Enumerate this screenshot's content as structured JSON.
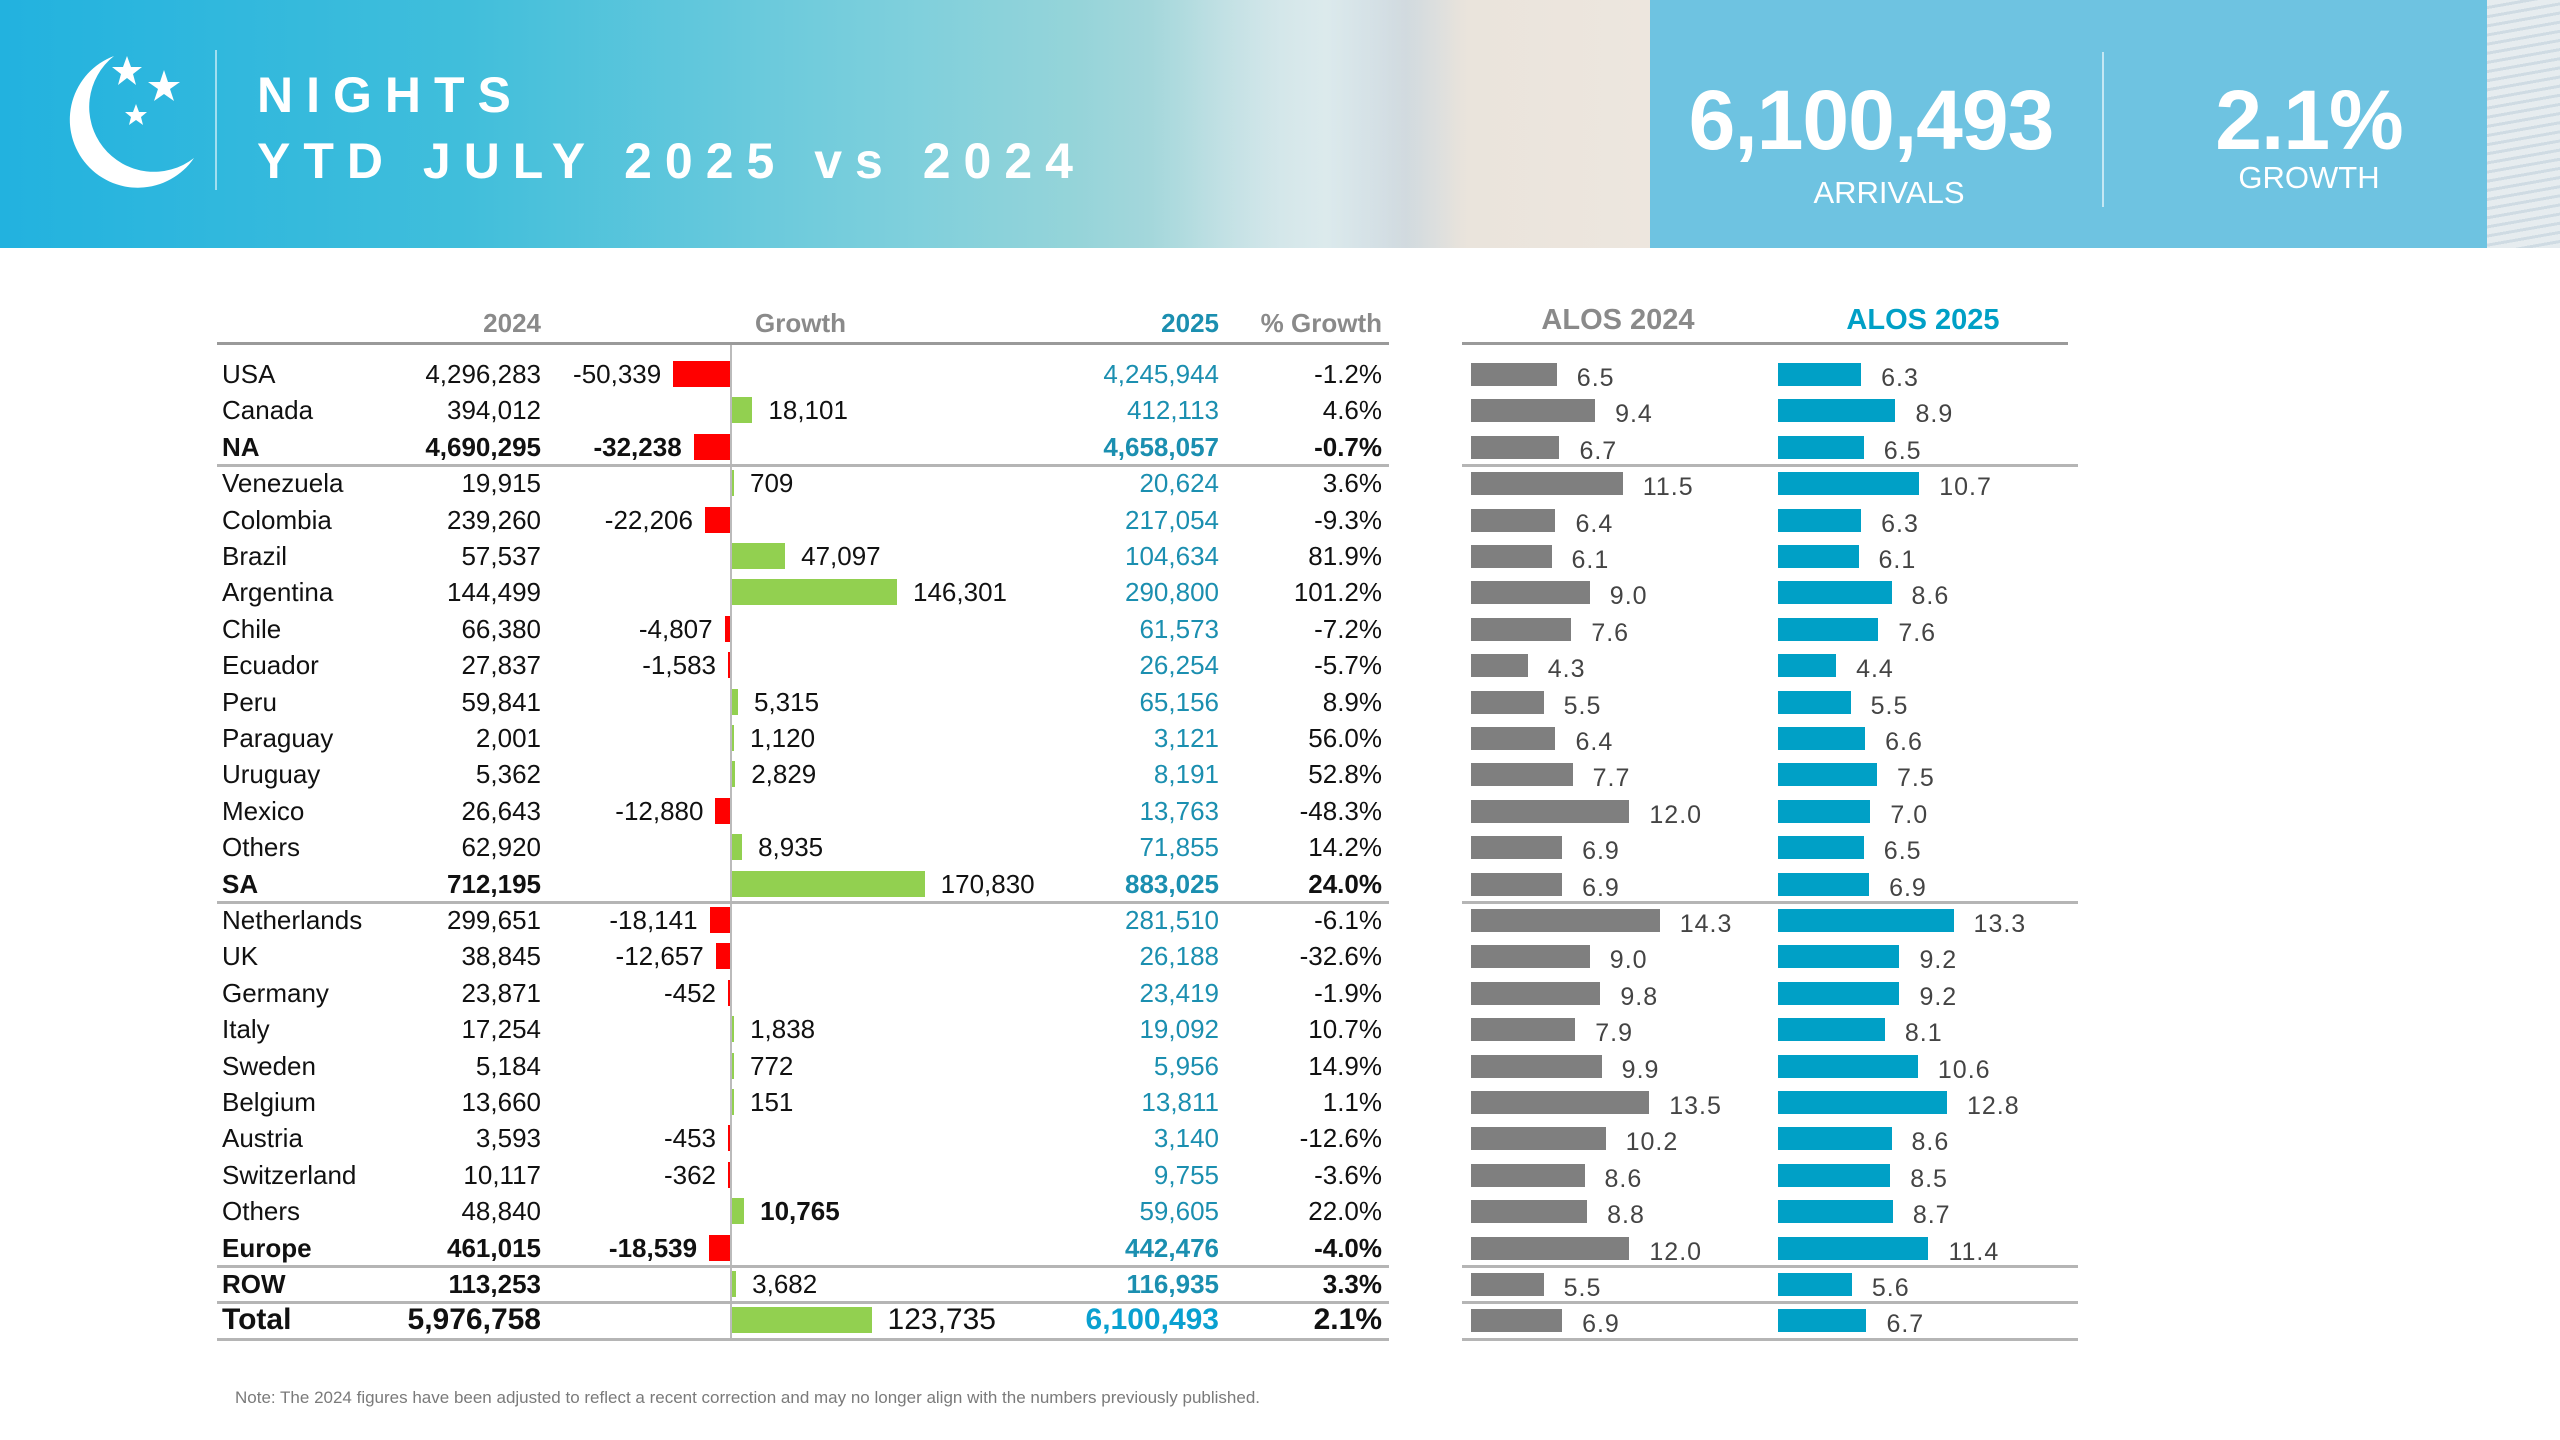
{
  "header": {
    "title_line1": "NIGHTS",
    "title_line2": "YTD JULY 2025 vs 2024",
    "icon": "moon-stars-icon",
    "arrivals_value": "6,100,493",
    "arrivals_label": "ARRIVALS",
    "growth_value": "2.1%",
    "growth_label": "GROWTH"
  },
  "columns": {
    "y2024": "2024",
    "growth": "Growth",
    "y2025": "2025",
    "pct": "% Growth",
    "alos2024": "ALOS 2024",
    "alos2025": "ALOS 2025"
  },
  "colors": {
    "negative": "#ff0000",
    "positive": "#92d050",
    "alos2024": "#7f7f7f",
    "alos2025": "#00a0c6",
    "y2025_text": "#1b8fb0"
  },
  "rows": [
    {
      "name": "USA",
      "y2024": "4,296,283",
      "growth": "-50,339",
      "y2025": "4,245,944",
      "pct": "-1.2%",
      "alos2024": "6.5",
      "alos2025": "6.3"
    },
    {
      "name": "Canada",
      "y2024": "394,012",
      "growth": "18,101",
      "y2025": "412,113",
      "pct": "4.6%",
      "alos2024": "9.4",
      "alos2025": "8.9"
    },
    {
      "name": "NA",
      "y2024": "4,690,295",
      "growth": "-32,238",
      "y2025": "4,658,057",
      "pct": "-0.7%",
      "alos2024": "6.7",
      "alos2025": "6.5",
      "bold": true,
      "sep": true
    },
    {
      "name": "Venezuela",
      "y2024": "19,915",
      "growth": "709",
      "y2025": "20,624",
      "pct": "3.6%",
      "alos2024": "11.5",
      "alos2025": "10.7"
    },
    {
      "name": "Colombia",
      "y2024": "239,260",
      "growth": "-22,206",
      "y2025": "217,054",
      "pct": "-9.3%",
      "alos2024": "6.4",
      "alos2025": "6.3"
    },
    {
      "name": "Brazil",
      "y2024": "57,537",
      "growth": "47,097",
      "y2025": "104,634",
      "pct": "81.9%",
      "alos2024": "6.1",
      "alos2025": "6.1"
    },
    {
      "name": "Argentina",
      "y2024": "144,499",
      "growth": "146,301",
      "y2025": "290,800",
      "pct": "101.2%",
      "alos2024": "9.0",
      "alos2025": "8.6"
    },
    {
      "name": "Chile",
      "y2024": "66,380",
      "growth": "-4,807",
      "y2025": "61,573",
      "pct": "-7.2%",
      "alos2024": "7.6",
      "alos2025": "7.6"
    },
    {
      "name": "Ecuador",
      "y2024": "27,837",
      "growth": "-1,583",
      "y2025": "26,254",
      "pct": "-5.7%",
      "alos2024": "4.3",
      "alos2025": "4.4"
    },
    {
      "name": "Peru",
      "y2024": "59,841",
      "growth": "5,315",
      "y2025": "65,156",
      "pct": "8.9%",
      "alos2024": "5.5",
      "alos2025": "5.5"
    },
    {
      "name": "Paraguay",
      "y2024": "2,001",
      "growth": "1,120",
      "y2025": "3,121",
      "pct": "56.0%",
      "alos2024": "6.4",
      "alos2025": "6.6"
    },
    {
      "name": "Uruguay",
      "y2024": "5,362",
      "growth": "2,829",
      "y2025": "8,191",
      "pct": "52.8%",
      "alos2024": "7.7",
      "alos2025": "7.5"
    },
    {
      "name": "Mexico",
      "y2024": "26,643",
      "growth": "-12,880",
      "y2025": "13,763",
      "pct": "-48.3%",
      "alos2024": "12.0",
      "alos2025": "7.0"
    },
    {
      "name": "Others",
      "y2024": "62,920",
      "growth": "8,935",
      "y2025": "71,855",
      "pct": "14.2%",
      "alos2024": "6.9",
      "alos2025": "6.5"
    },
    {
      "name": "SA",
      "y2024": "712,195",
      "growth": "170,830",
      "y2025": "883,025",
      "pct": "24.0%",
      "alos2024": "6.9",
      "alos2025": "6.9",
      "bold": true,
      "sep": true
    },
    {
      "name": "Netherlands",
      "y2024": "299,651",
      "growth": "-18,141",
      "y2025": "281,510",
      "pct": "-6.1%",
      "alos2024": "14.3",
      "alos2025": "13.3"
    },
    {
      "name": "UK",
      "y2024": "38,845",
      "growth": "-12,657",
      "y2025": "26,188",
      "pct": "-32.6%",
      "alos2024": "9.0",
      "alos2025": "9.2"
    },
    {
      "name": "Germany",
      "y2024": "23,871",
      "growth": "-452",
      "y2025": "23,419",
      "pct": "-1.9%",
      "alos2024": "9.8",
      "alos2025": "9.2"
    },
    {
      "name": "Italy",
      "y2024": "17,254",
      "growth": "1,838",
      "y2025": "19,092",
      "pct": "10.7%",
      "alos2024": "7.9",
      "alos2025": "8.1"
    },
    {
      "name": "Sweden",
      "y2024": "5,184",
      "growth": "772",
      "y2025": "5,956",
      "pct": "14.9%",
      "alos2024": "9.9",
      "alos2025": "10.6"
    },
    {
      "name": "Belgium",
      "y2024": "13,660",
      "growth": "151",
      "y2025": "13,811",
      "pct": "1.1%",
      "alos2024": "13.5",
      "alos2025": "12.8"
    },
    {
      "name": "Austria",
      "y2024": "3,593",
      "growth": "-453",
      "y2025": "3,140",
      "pct": "-12.6%",
      "alos2024": "10.2",
      "alos2025": "8.6"
    },
    {
      "name": "Switzerland",
      "y2024": "10,117",
      "growth": "-362",
      "y2025": "9,755",
      "pct": "-3.6%",
      "alos2024": "8.6",
      "alos2025": "8.5"
    },
    {
      "name": "Others",
      "y2024": "48,840",
      "growth": "10,765",
      "y2025": "59,605",
      "pct": "22.0%",
      "alos2024": "8.8",
      "alos2025": "8.7",
      "growth_bold": true
    },
    {
      "name": "Europe",
      "y2024": "461,015",
      "growth": "-18,539",
      "y2025": "442,476",
      "pct": "-4.0%",
      "alos2024": "12.0",
      "alos2025": "11.4",
      "bold": true,
      "sep": true
    },
    {
      "name": "ROW",
      "y2024": "113,253",
      "growth": "3,682",
      "y2025": "116,935",
      "pct": "3.3%",
      "alos2024": "5.5",
      "alos2025": "5.6",
      "bold": true,
      "sep": true
    },
    {
      "name": "Total",
      "y2024": "5,976,758",
      "growth": "123,735",
      "y2025": "6,100,493",
      "pct": "2.1%",
      "alos2024": "6.9",
      "alos2025": "6.7",
      "bold": true,
      "sep": true,
      "total": true
    }
  ],
  "note": "Note: The 2024 figures have been adjusted to reflect a recent correction and may no longer align with the numbers previously published."
}
